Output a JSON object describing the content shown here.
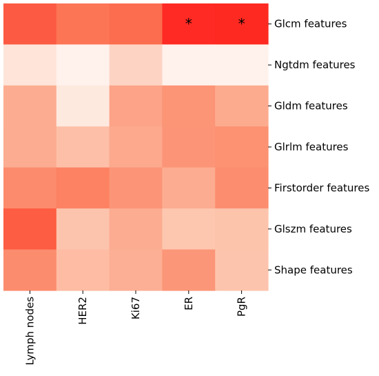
{
  "chart_data": {
    "type": "heatmap",
    "columns": [
      "Lymph nodes",
      "HER2",
      "Ki67",
      "ER",
      "PgR"
    ],
    "rows": [
      "Glcm features",
      "Ngtdm features",
      "Gldm features",
      "Glrlm features",
      "Firstorder features",
      "Glszm features",
      "Shape features"
    ],
    "cell_colors": [
      [
        "#fc5a42",
        "#fc7555",
        "#fc6c4f",
        "#fe2a23",
        "#fe2921"
      ],
      [
        "#fee4d9",
        "#fff1ec",
        "#fdd4c4",
        "#fff1eb",
        "#fff1eb"
      ],
      [
        "#fcad91",
        "#fee9df",
        "#fca388",
        "#fc9476",
        "#fdab8f"
      ],
      [
        "#fcac90",
        "#fdbfa7",
        "#fca98d",
        "#fc9477",
        "#fc9272"
      ],
      [
        "#fc8b6d",
        "#fc8263",
        "#fc9577",
        "#fcac91",
        "#fc8e6f"
      ],
      [
        "#fd5d42",
        "#fdc4ad",
        "#fcac91",
        "#fdc6af",
        "#fdc4ac"
      ],
      [
        "#fc8c6e",
        "#fdbca3",
        "#fcaf94",
        "#fc9678",
        "#fdc4ad"
      ]
    ],
    "annotations": [
      {
        "row": 0,
        "col": 3,
        "text": "*"
      },
      {
        "row": 0,
        "col": 4,
        "text": "*"
      }
    ],
    "colorscale": "Reds",
    "title": "",
    "xlabel": "",
    "ylabel": "",
    "legend": "none"
  }
}
